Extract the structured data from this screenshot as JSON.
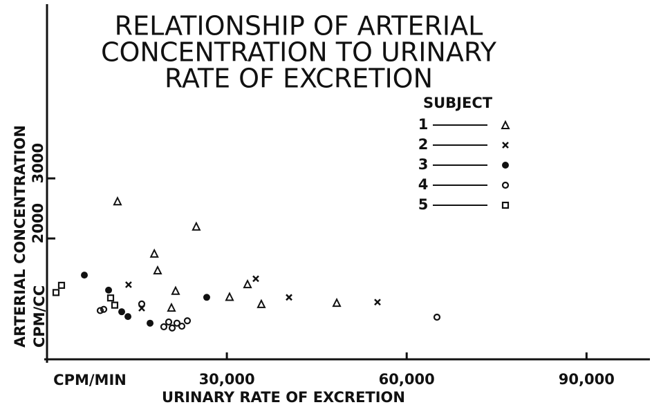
{
  "chart_data": {
    "type": "scatter",
    "title": [
      "RELATIONSHIP OF ARTERIAL",
      "CONCENTRATION TO URINARY",
      "RATE OF EXCRETION"
    ],
    "x_label": "URINARY RATE OF EXCRETION",
    "x_unit_label": "CPM/MIN",
    "y_label": [
      "ARTERIAL CONCENTRATION",
      "CPM/CC"
    ],
    "legend_title": "SUBJECT",
    "legend": "upper right",
    "xlim": [
      0,
      100000
    ],
    "ylim": [
      0,
      5900
    ],
    "xticks": [
      {
        "value": 30000,
        "label": "30,000"
      },
      {
        "value": 60000,
        "label": "60,000"
      },
      {
        "value": 90000,
        "label": "90,000"
      }
    ],
    "yticks": [
      2000,
      3000
    ],
    "series": [
      {
        "name": "1",
        "marker": "triangle",
        "color": "#111111",
        "x": [
          11760,
          24900,
          17900,
          18450,
          21450,
          20760,
          30450,
          33450,
          35750,
          48330
        ],
        "values": [
          2620,
          2200,
          1750,
          1470,
          1130,
          850,
          1030,
          1240,
          910,
          930
        ]
      },
      {
        "name": "2",
        "marker": "x",
        "color": "#111111",
        "x": [
          13600,
          15800,
          34830,
          40370,
          55130
        ],
        "values": [
          1230,
          840,
          1330,
          1020,
          940
        ]
      },
      {
        "name": "3",
        "marker": "circle",
        "color": "#111111",
        "x": [
          6230,
          10270,
          12460,
          13500,
          17190,
          26640
        ],
        "values": [
          1390,
          1140,
          780,
          700,
          590,
          1020
        ]
      },
      {
        "name": "4",
        "marker": "open-circle",
        "color": "#111111",
        "x": [
          8880,
          9460,
          15800,
          19490,
          20300,
          20880,
          21680,
          22490,
          23410,
          65050
        ],
        "values": [
          800,
          820,
          910,
          530,
          610,
          510,
          590,
          540,
          630,
          690
        ]
      },
      {
        "name": "5",
        "marker": "square",
        "color": "#111111",
        "x": [
          1500,
          2420,
          10610,
          11300
        ],
        "values": [
          1100,
          1220,
          1010,
          890
        ]
      }
    ]
  }
}
